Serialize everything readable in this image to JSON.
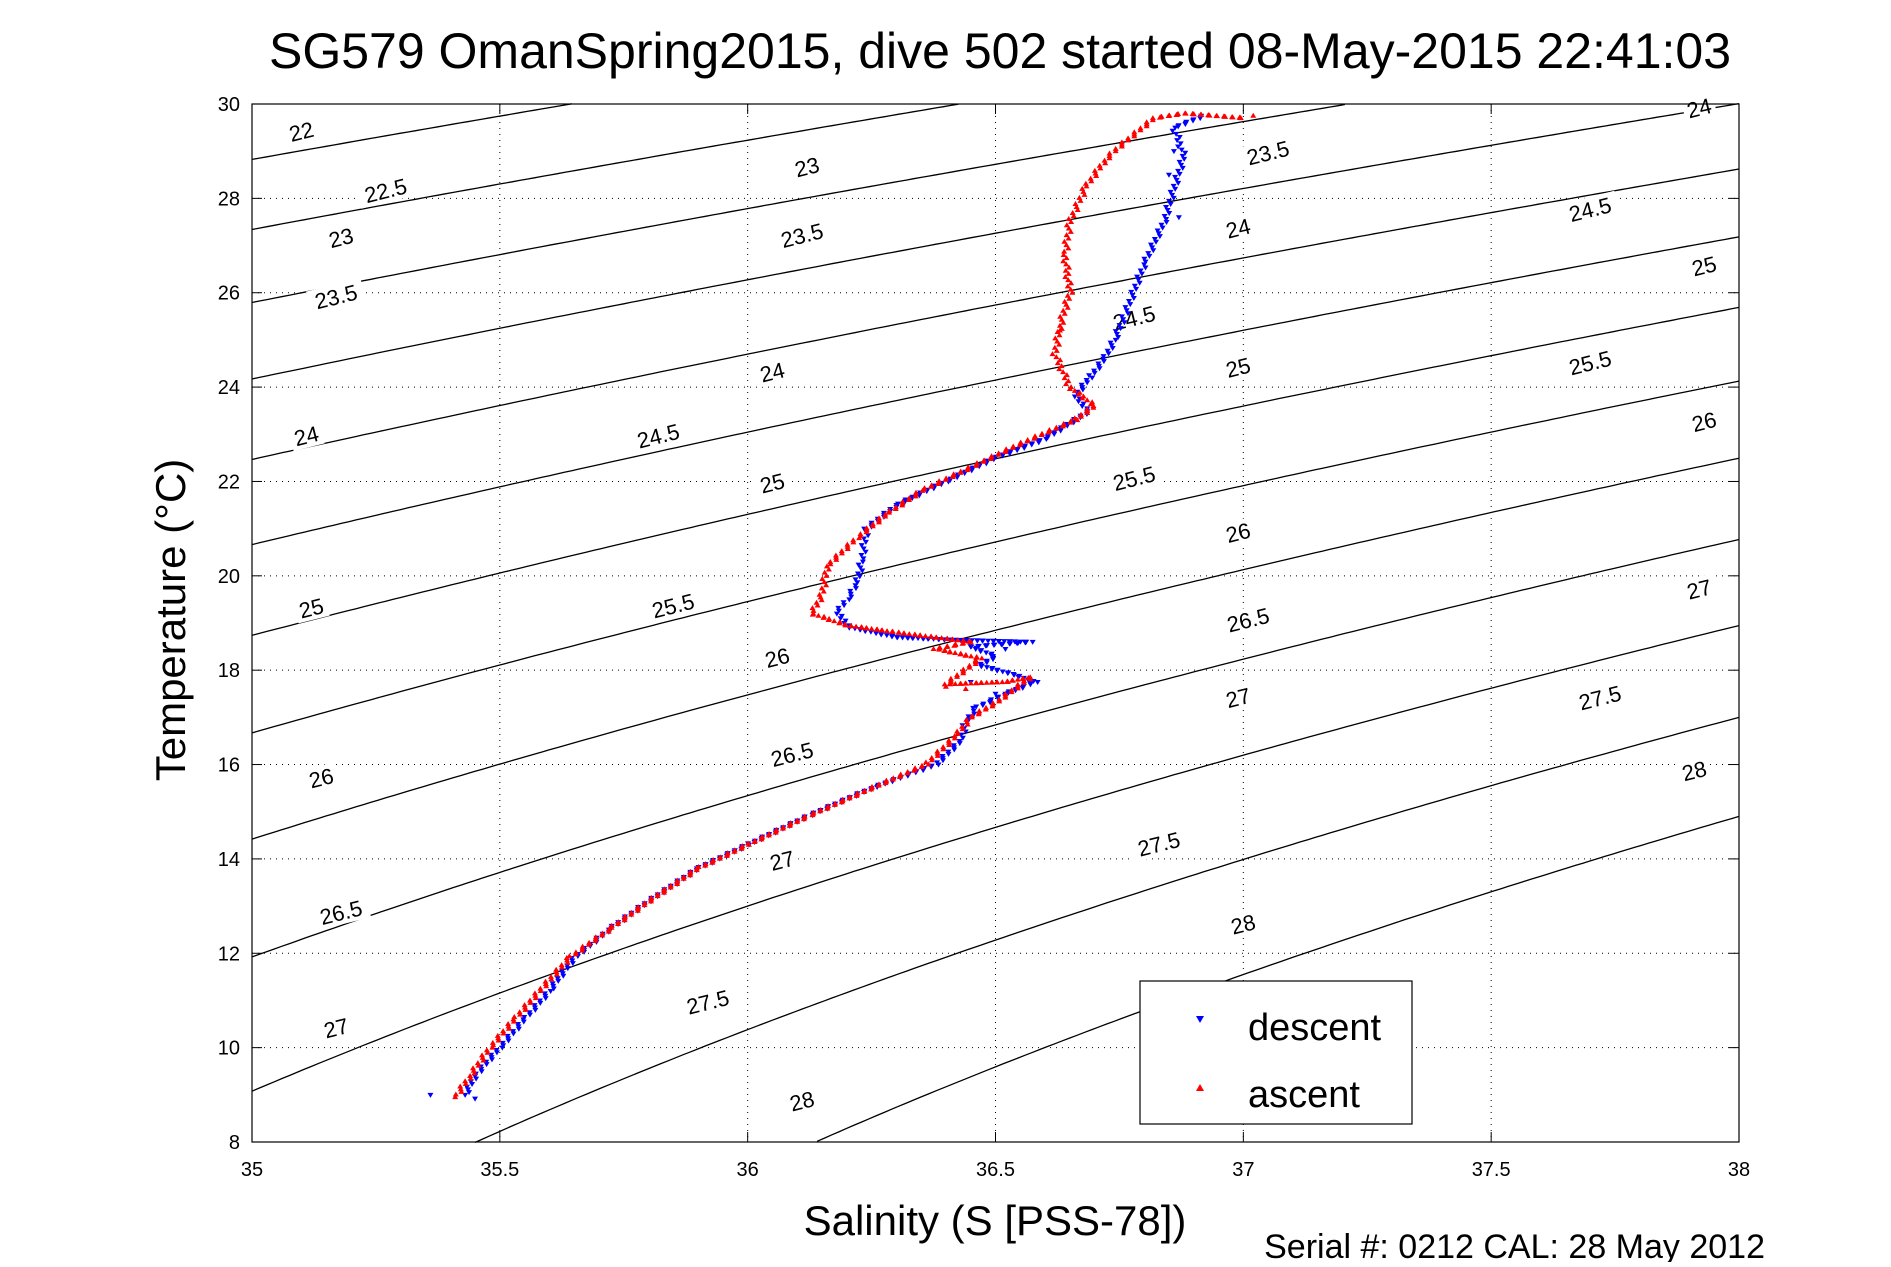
{
  "chart_data": {
    "type": "scatter",
    "title": "SG579 OmanSpring2015, dive 502 started 08-May-2015 22:41:03",
    "xlabel": "Salinity (S [PSS-78])",
    "ylabel": "Temperature (°C)",
    "footer": "Serial #: 0212  CAL: 28 May 2012",
    "xlim": [
      35,
      38
    ],
    "ylim": [
      8,
      30
    ],
    "xticks": [
      35,
      35.5,
      36,
      36.5,
      37,
      37.5,
      38
    ],
    "yticks": [
      8,
      10,
      12,
      14,
      16,
      18,
      20,
      22,
      24,
      26,
      28,
      30
    ],
    "grid": true,
    "legend_position": "bottom-right",
    "contours": {
      "levels": [
        22,
        22.5,
        23,
        23.5,
        24,
        24.5,
        25,
        25.5,
        26,
        26.5,
        27,
        27.5,
        28
      ],
      "label_positions": [
        {
          "level": "22",
          "s": 35.1,
          "t": 29.4
        },
        {
          "level": "22.5",
          "s": 35.27,
          "t": 28.15
        },
        {
          "level": "23",
          "s": 35.18,
          "t": 27.15
        },
        {
          "level": "23.5",
          "s": 35.17,
          "t": 25.9
        },
        {
          "level": "24",
          "s": 35.11,
          "t": 22.95
        },
        {
          "level": "25",
          "s": 35.12,
          "t": 19.3
        },
        {
          "level": "26",
          "s": 35.14,
          "t": 15.7
        },
        {
          "level": "26.5",
          "s": 35.18,
          "t": 12.85
        },
        {
          "level": "27",
          "s": 35.17,
          "t": 10.4
        },
        {
          "level": "23",
          "s": 36.12,
          "t": 28.65
        },
        {
          "level": "23.5",
          "s": 36.11,
          "t": 27.2
        },
        {
          "level": "24",
          "s": 36.05,
          "t": 24.3
        },
        {
          "level": "24.5",
          "s": 35.82,
          "t": 22.95
        },
        {
          "level": "25",
          "s": 36.05,
          "t": 21.95
        },
        {
          "level": "25.5",
          "s": 35.85,
          "t": 19.35
        },
        {
          "level": "26",
          "s": 36.06,
          "t": 18.25
        },
        {
          "level": "26.5",
          "s": 36.09,
          "t": 16.2
        },
        {
          "level": "27",
          "s": 36.07,
          "t": 13.95
        },
        {
          "level": "27.5",
          "s": 35.92,
          "t": 10.95
        },
        {
          "level": "28",
          "s": 36.11,
          "t": 8.85
        },
        {
          "level": "23.5",
          "s": 37.05,
          "t": 28.95
        },
        {
          "level": "24",
          "s": 36.99,
          "t": 27.35
        },
        {
          "level": "24.5",
          "s": 36.78,
          "t": 25.45
        },
        {
          "level": "25",
          "s": 36.99,
          "t": 24.4
        },
        {
          "level": "25.5",
          "s": 36.78,
          "t": 22.05
        },
        {
          "level": "26",
          "s": 36.99,
          "t": 20.9
        },
        {
          "level": "26.5",
          "s": 37.01,
          "t": 19.05
        },
        {
          "level": "27",
          "s": 36.99,
          "t": 17.4
        },
        {
          "level": "27.5",
          "s": 36.83,
          "t": 14.3
        },
        {
          "level": "28",
          "s": 37.0,
          "t": 12.6
        },
        {
          "level": "24",
          "s": 37.92,
          "t": 29.9
        },
        {
          "level": "24.5",
          "s": 37.7,
          "t": 27.75
        },
        {
          "level": "25",
          "s": 37.93,
          "t": 26.55
        },
        {
          "level": "25.5",
          "s": 37.7,
          "t": 24.5
        },
        {
          "level": "26",
          "s": 37.93,
          "t": 23.25
        },
        {
          "level": "27",
          "s": 37.92,
          "t": 19.7
        },
        {
          "level": "27.5",
          "s": 37.72,
          "t": 17.4
        },
        {
          "level": "28",
          "s": 37.91,
          "t": 15.85
        }
      ]
    },
    "series": [
      {
        "name": "descent",
        "color": "#0000ff",
        "marker": "triangle-down",
        "path": [
          [
            36.92,
            29.75
          ],
          [
            36.86,
            29.5
          ],
          [
            36.88,
            28.9
          ],
          [
            36.84,
            27.5
          ],
          [
            36.8,
            26.6
          ],
          [
            36.76,
            25.5
          ],
          [
            36.74,
            25.0
          ],
          [
            36.72,
            24.6
          ],
          [
            36.69,
            24.2
          ],
          [
            36.66,
            23.8
          ],
          [
            36.69,
            23.5
          ],
          [
            36.6,
            22.9
          ],
          [
            36.5,
            22.5
          ],
          [
            36.4,
            22.0
          ],
          [
            36.3,
            21.5
          ],
          [
            36.24,
            21.0
          ],
          [
            36.23,
            20.3
          ],
          [
            36.22,
            19.8
          ],
          [
            36.2,
            19.5
          ],
          [
            36.18,
            19.2
          ],
          [
            36.21,
            18.9
          ],
          [
            36.3,
            18.7
          ],
          [
            36.4,
            18.65
          ],
          [
            36.57,
            18.6
          ],
          [
            36.45,
            18.5
          ],
          [
            36.5,
            18.3
          ],
          [
            36.47,
            18.1
          ],
          [
            36.54,
            17.9
          ],
          [
            36.58,
            17.75
          ],
          [
            36.52,
            17.5
          ],
          [
            36.46,
            17.2
          ],
          [
            36.44,
            16.9
          ],
          [
            36.43,
            16.5
          ],
          [
            36.38,
            16.0
          ],
          [
            36.25,
            15.5
          ],
          [
            36.12,
            14.9
          ],
          [
            36.0,
            14.3
          ],
          [
            35.9,
            13.8
          ],
          [
            35.8,
            13.1
          ],
          [
            35.72,
            12.5
          ],
          [
            35.65,
            11.9
          ],
          [
            35.6,
            11.2
          ],
          [
            35.55,
            10.6
          ],
          [
            35.5,
            10.0
          ],
          [
            35.45,
            9.4
          ],
          [
            35.43,
            9.0
          ]
        ],
        "extra_points": [
          [
            36.86,
            29.0
          ],
          [
            36.85,
            28.5
          ],
          [
            36.87,
            27.6
          ],
          [
            36.52,
            18.45
          ],
          [
            36.45,
            17.75
          ],
          [
            36.5,
            17.5
          ],
          [
            35.36,
            9.0
          ],
          [
            35.45,
            8.92
          ]
        ]
      },
      {
        "name": "ascent",
        "color": "#ff0000",
        "marker": "triangle-up",
        "path": [
          [
            37.0,
            29.7
          ],
          [
            36.88,
            29.8
          ],
          [
            36.82,
            29.7
          ],
          [
            36.75,
            29.1
          ],
          [
            36.72,
            28.8
          ],
          [
            36.68,
            28.2
          ],
          [
            36.65,
            27.5
          ],
          [
            36.64,
            26.8
          ],
          [
            36.65,
            26.0
          ],
          [
            36.63,
            25.3
          ],
          [
            36.62,
            24.7
          ],
          [
            36.65,
            24.0
          ],
          [
            36.7,
            23.6
          ],
          [
            36.66,
            23.3
          ],
          [
            36.55,
            22.8
          ],
          [
            36.45,
            22.3
          ],
          [
            36.35,
            21.8
          ],
          [
            36.28,
            21.3
          ],
          [
            36.22,
            20.8
          ],
          [
            36.16,
            20.2
          ],
          [
            36.15,
            19.6
          ],
          [
            36.13,
            19.2
          ],
          [
            36.2,
            18.95
          ],
          [
            36.3,
            18.8
          ],
          [
            36.45,
            18.6
          ],
          [
            36.38,
            18.45
          ],
          [
            36.47,
            18.25
          ],
          [
            36.4,
            17.7
          ],
          [
            36.52,
            17.75
          ],
          [
            36.57,
            17.85
          ],
          [
            36.5,
            17.3
          ],
          [
            36.45,
            17.0
          ],
          [
            36.42,
            16.6
          ],
          [
            36.36,
            16.0
          ],
          [
            36.25,
            15.5
          ],
          [
            36.12,
            14.9
          ],
          [
            36.0,
            14.3
          ],
          [
            35.9,
            13.8
          ],
          [
            35.8,
            13.1
          ],
          [
            35.72,
            12.5
          ],
          [
            35.64,
            11.9
          ],
          [
            35.58,
            11.2
          ],
          [
            35.53,
            10.6
          ],
          [
            35.48,
            10.0
          ],
          [
            35.44,
            9.4
          ],
          [
            35.41,
            8.95
          ]
        ],
        "extra_points": [
          [
            37.02,
            29.75
          ],
          [
            36.63,
            25.2
          ],
          [
            36.4,
            17.65
          ],
          [
            36.44,
            17.6
          ],
          [
            36.46,
            18.2
          ]
        ]
      }
    ],
    "legend": {
      "entries": [
        "descent",
        "ascent"
      ]
    }
  }
}
